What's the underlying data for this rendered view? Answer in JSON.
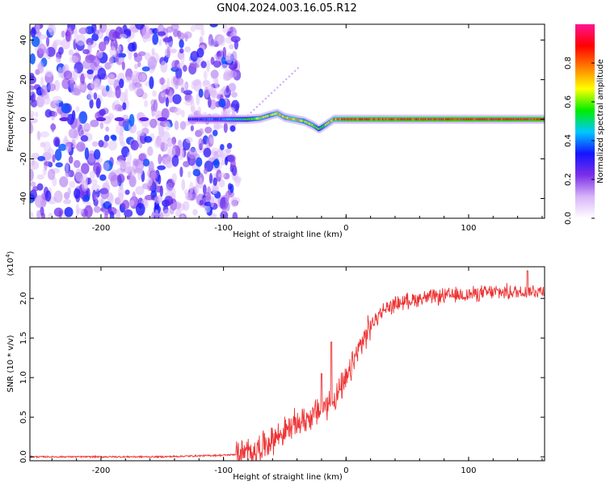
{
  "title": "GN04.2024.003.16.05.R12",
  "chart_data": [
    {
      "type": "heatmap",
      "xlabel": "Height of straight line (km)",
      "ylabel": "Frequency (Hz)",
      "xlim": [
        -258,
        162
      ],
      "ylim": [
        -50,
        48
      ],
      "xticks": [
        -200,
        -100,
        0,
        100
      ],
      "xtick_labels": [
        "-200",
        "-100",
        "0",
        "100"
      ],
      "yticks": [
        -40,
        -20,
        0,
        20,
        40
      ],
      "ytick_labels": [
        "-40",
        "-20",
        "0",
        "20",
        "40"
      ],
      "noise_region_x": [
        -258,
        -88
      ],
      "ridge": [
        {
          "x": -128,
          "y": 0,
          "amp": 0.35
        },
        {
          "x": -100,
          "y": 0,
          "amp": 0.45
        },
        {
          "x": -80,
          "y": 0,
          "amp": 0.6
        },
        {
          "x": -70,
          "y": 0.5,
          "amp": 0.75
        },
        {
          "x": -62,
          "y": 2,
          "amp": 0.7
        },
        {
          "x": -56,
          "y": 3,
          "amp": 0.8
        },
        {
          "x": -50,
          "y": 1,
          "amp": 0.75
        },
        {
          "x": -42,
          "y": 0,
          "amp": 0.85
        },
        {
          "x": -34,
          "y": -1,
          "amp": 0.7
        },
        {
          "x": -27,
          "y": -3,
          "amp": 0.75
        },
        {
          "x": -22,
          "y": -5,
          "amp": 0.6
        },
        {
          "x": -17,
          "y": -3,
          "amp": 0.7
        },
        {
          "x": -10,
          "y": 0,
          "amp": 0.85
        },
        {
          "x": 0,
          "y": 0,
          "amp": 0.95
        },
        {
          "x": 40,
          "y": 0,
          "amp": 0.98
        },
        {
          "x": 80,
          "y": 0,
          "amp": 1.0
        },
        {
          "x": 120,
          "y": 0,
          "amp": 1.0
        },
        {
          "x": 162,
          "y": 0,
          "amp": 1.0
        }
      ],
      "colorbar": {
        "label": "Normalized spectral amplitude",
        "range": [
          0,
          1
        ],
        "ticks": [
          0.0,
          0.2,
          0.4,
          0.6,
          0.8
        ],
        "tick_labels": [
          "0.0",
          "0.2",
          "0.4",
          "0.6",
          "0.8"
        ],
        "colors": [
          "#ffffff",
          "#d8b4f8",
          "#7b2fe8",
          "#1414ff",
          "#00c8ff",
          "#00ee00",
          "#ffff00",
          "#ff7f00",
          "#ff0000",
          "#ff1493"
        ]
      }
    },
    {
      "type": "line",
      "xlabel": "Height of straight line (km)",
      "ylabel": "SNR (10 * v/v)",
      "ylabel_exponent": "(x10",
      "ylabel_exponent_power": "4",
      "ylabel_exponent_close": ")",
      "xlim": [
        -258,
        162
      ],
      "ylim": [
        -0.05,
        2.4
      ],
      "xticks": [
        -200,
        -100,
        0,
        100
      ],
      "xtick_labels": [
        "-200",
        "-100",
        "0",
        "100"
      ],
      "yticks": [
        0.0,
        0.5,
        1.0,
        1.5,
        2.0
      ],
      "ytick_labels": [
        "0.0",
        "0.5",
        "1.0",
        "1.5",
        "2.0"
      ],
      "series": [
        {
          "color": "#ee3333",
          "x": [
            -258,
            -200,
            -150,
            -100,
            -90,
            -80,
            -70,
            -60,
            -50,
            -40,
            -30,
            -20,
            -10,
            0,
            10,
            20,
            30,
            40,
            50,
            60,
            80,
            100,
            120,
            140,
            162
          ],
          "y": [
            0.0,
            0.0,
            0.0,
            0.02,
            0.03,
            0.05,
            0.12,
            0.22,
            0.32,
            0.42,
            0.5,
            0.6,
            0.72,
            0.95,
            1.35,
            1.65,
            1.85,
            1.93,
            1.97,
            2.0,
            2.03,
            2.05,
            2.08,
            2.08,
            2.1
          ]
        }
      ],
      "spikes": [
        {
          "x": -12,
          "y": 1.45
        },
        {
          "x": -20,
          "y": 1.05
        },
        {
          "x": 148,
          "y": 2.35
        }
      ]
    }
  ]
}
